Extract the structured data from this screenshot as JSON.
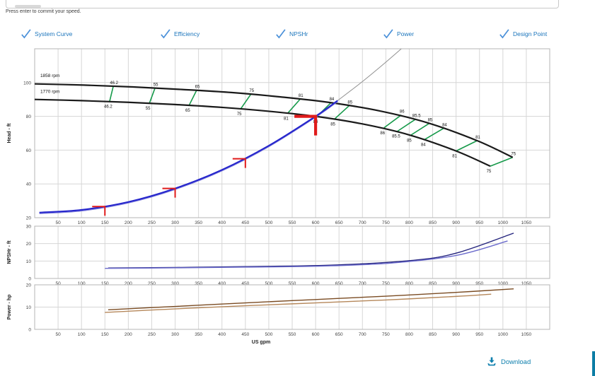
{
  "speed_input": {
    "value": "",
    "hint": "Press enter to commit your speed."
  },
  "toggles": [
    {
      "label": "System Curve",
      "checked": true
    },
    {
      "label": "Efficiency",
      "checked": true
    },
    {
      "label": "NPSHr",
      "checked": true
    },
    {
      "label": "Power",
      "checked": true
    },
    {
      "label": "Design Point",
      "checked": true
    }
  ],
  "download_label": "Download",
  "colors": {
    "toggle_label": "#1b75bc",
    "check": "#4a90d9",
    "link": "#0e7fad",
    "pump_curve": "#1a1a1a",
    "efficiency": "#169a4a",
    "system": "#2626cc",
    "system_echo": "#8888dd",
    "system_ext": "#909090",
    "design": "#e01b1b",
    "npshr_dark": "#23237d",
    "npshr_light": "#6b6bcc",
    "power_dark": "#7a4b22",
    "power_light": "#b5875a",
    "grid": "#d6d6d6",
    "border": "#b5b5b5"
  },
  "chart_data": {
    "type": "line",
    "xlabel": "US gpm",
    "xlim": [
      0,
      1100
    ],
    "x_ticks": [
      50,
      100,
      150,
      200,
      250,
      300,
      350,
      400,
      450,
      500,
      550,
      600,
      650,
      700,
      750,
      800,
      850,
      900,
      950,
      1000,
      1050
    ],
    "subplots": [
      {
        "name": "head",
        "ylabel": "Head - ft",
        "ylim": [
          20,
          120
        ],
        "y_ticks": [
          100,
          80,
          60,
          40,
          20
        ]
      },
      {
        "name": "npshr",
        "ylabel": "NPSHr - ft",
        "ylim": [
          0,
          30
        ],
        "y_ticks": [
          30,
          20,
          10,
          0
        ]
      },
      {
        "name": "power",
        "ylabel": "Power - hp",
        "ylim": [
          0,
          20
        ],
        "y_ticks": [
          20,
          10,
          0
        ]
      }
    ],
    "speed_labels": [
      {
        "label": "1858 rpm",
        "q": 12,
        "h": 103.2
      },
      {
        "label": "1770 rpm",
        "q": 12,
        "h": 93.8
      }
    ],
    "pump_curves": [
      {
        "name": "1858 rpm",
        "points": [
          [
            0,
            99.2
          ],
          [
            105,
            98.5
          ],
          [
            210,
            97.4
          ],
          [
            315,
            95.9
          ],
          [
            420,
            94.1
          ],
          [
            525,
            91.5
          ],
          [
            630,
            88.2
          ],
          [
            735,
            83.3
          ],
          [
            840,
            76.1
          ],
          [
            945,
            65.6
          ],
          [
            1021,
            55.7
          ]
        ]
      },
      {
        "name": "1770 rpm",
        "points": [
          [
            0,
            90
          ],
          [
            100,
            89.3
          ],
          [
            200,
            88.3
          ],
          [
            300,
            87
          ],
          [
            400,
            85.3
          ],
          [
            500,
            83
          ],
          [
            600,
            80
          ],
          [
            700,
            75.5
          ],
          [
            800,
            69
          ],
          [
            900,
            59.5
          ],
          [
            973,
            50.5
          ]
        ]
      }
    ],
    "system_curve": {
      "points": [
        [
          10,
          23
        ],
        [
          100,
          24.6
        ],
        [
          200,
          29.3
        ],
        [
          300,
          37.3
        ],
        [
          400,
          48.3
        ],
        [
          500,
          62.6
        ],
        [
          600,
          80
        ],
        [
          647,
          89.3
        ]
      ],
      "extension": [
        [
          647,
          89.3
        ],
        [
          700,
          100.6
        ],
        [
          745,
          110.9
        ],
        [
          783,
          120
        ]
      ]
    },
    "design_point": {
      "q": 600,
      "h": 80
    },
    "system_markers": [
      [
        150,
        26.6
      ],
      [
        300,
        37.3
      ],
      [
        450,
        54.9
      ]
    ],
    "efficiency_lines": [
      {
        "label": "46.2",
        "b": [
          160,
          88.8
        ],
        "t": [
          168,
          97.9
        ]
      },
      {
        "label": "55",
        "b": [
          245,
          87.7
        ],
        "t": [
          257,
          96.7
        ]
      },
      {
        "label": "65",
        "b": [
          330,
          86.6
        ],
        "t": [
          346,
          95.5
        ]
      },
      {
        "label": "75",
        "b": [
          440,
          84.4
        ],
        "t": [
          462,
          93.2
        ]
      },
      {
        "label": "81",
        "b": [
          540,
          81.7
        ],
        "t": [
          567,
          90.2
        ]
      },
      {
        "label": "84",
        "b": [
          603,
          79.9
        ],
        "t": [
          633,
          88.1
        ]
      },
      {
        "label": "85",
        "b": [
          640,
          78.3
        ],
        "t": [
          672,
          86.4
        ]
      },
      {
        "label": "86",
        "b": [
          746,
          73.2
        ],
        "t": [
          783,
          80.8
        ]
      },
      {
        "label": "85.5",
        "b": [
          775,
          71.2
        ],
        "t": [
          814,
          78.4
        ]
      },
      {
        "label": "85",
        "b": [
          803,
          68.8
        ],
        "t": [
          843,
          75.9
        ]
      },
      {
        "label": "84",
        "b": [
          833,
          66.3
        ],
        "t": [
          874,
          73.0
        ]
      },
      {
        "label": "81",
        "b": [
          900,
          59.5
        ],
        "t": [
          945,
          65.6
        ]
      },
      {
        "label": "75",
        "b": [
          973,
          50.5
        ],
        "t": [
          1021,
          55.7
        ]
      }
    ],
    "npshr_curves": [
      {
        "name": "1858 rpm",
        "points": [
          [
            157,
            6
          ],
          [
            300,
            6.3
          ],
          [
            450,
            6.8
          ],
          [
            630,
            7.6
          ],
          [
            800,
            10.2
          ],
          [
            900,
            14.5
          ],
          [
            1023,
            26
          ]
        ]
      },
      {
        "name": "1770 rpm",
        "points": [
          [
            150,
            5.8
          ],
          [
            300,
            6.1
          ],
          [
            450,
            6.5
          ],
          [
            600,
            7
          ],
          [
            760,
            8.8
          ],
          [
            900,
            13.2
          ],
          [
            1010,
            21.5
          ]
        ]
      }
    ],
    "power_curves": [
      {
        "name": "1858 rpm",
        "points": [
          [
            157,
            8.8
          ],
          [
            300,
            10.3
          ],
          [
            450,
            11.9
          ],
          [
            600,
            13.4
          ],
          [
            750,
            14.9
          ],
          [
            900,
            16.6
          ],
          [
            1023,
            18.2
          ]
        ]
      },
      {
        "name": "1770 rpm",
        "points": [
          [
            150,
            7.6
          ],
          [
            300,
            9.2
          ],
          [
            450,
            10.6
          ],
          [
            600,
            11.9
          ],
          [
            750,
            13.2
          ],
          [
            900,
            14.8
          ],
          [
            975,
            15.8
          ]
        ]
      }
    ]
  }
}
